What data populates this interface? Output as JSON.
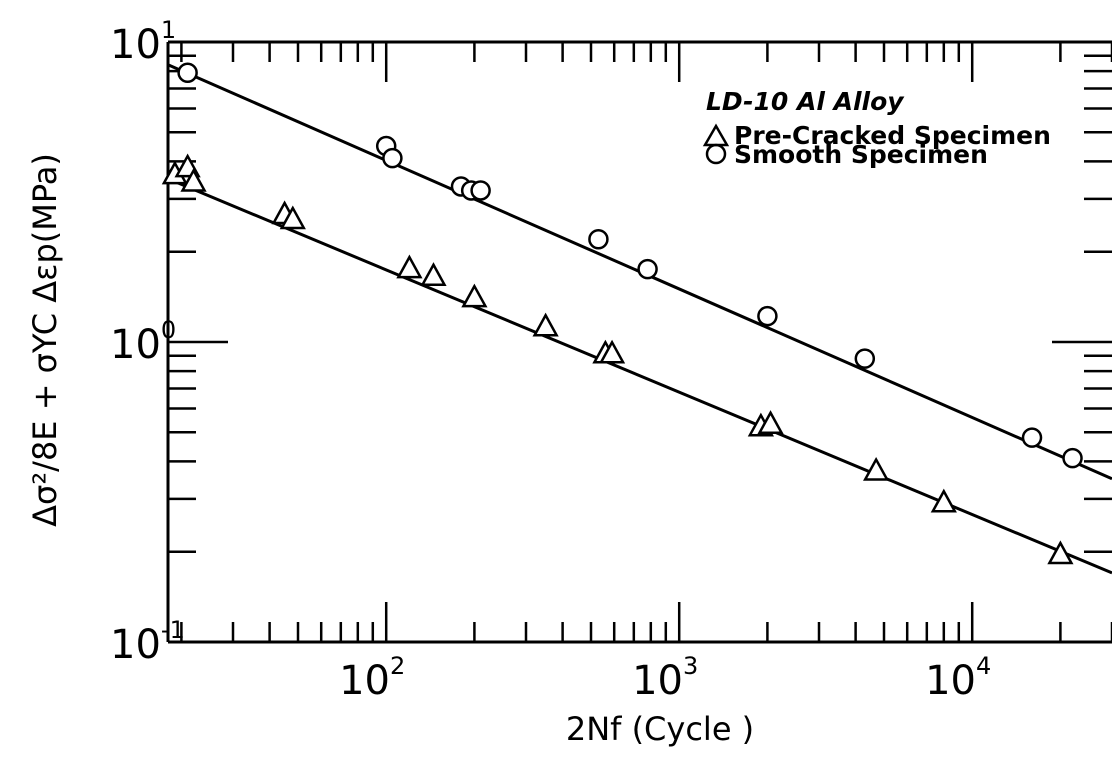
{
  "chart_data": {
    "type": "scatter",
    "x_scale": "log",
    "y_scale": "log",
    "xlim": [
      18,
      30000
    ],
    "ylim": [
      0.1,
      10
    ],
    "xlabel": "2Nf (Cycle )",
    "ylabel": "Δσ²/8E + σYC Δεp(MPa)",
    "x_ticks": [
      {
        "value": 100,
        "base": "10",
        "exp": "2"
      },
      {
        "value": 1000,
        "base": "10",
        "exp": "3"
      },
      {
        "value": 10000,
        "base": "10",
        "exp": "4"
      }
    ],
    "y_ticks": [
      {
        "value": 10,
        "base": "10",
        "exp": "1"
      },
      {
        "value": 1,
        "base": "10",
        "exp": "0"
      },
      {
        "value": 0.1,
        "base": "10",
        "exp": "-1"
      }
    ],
    "legend": {
      "title": "LD-10 Al Alloy",
      "placement": "top-right",
      "entries": [
        {
          "marker": "triangle",
          "label": "Pre-Cracked Specimen"
        },
        {
          "marker": "circle",
          "label": "Smooth Specimen"
        }
      ]
    },
    "series": [
      {
        "name": "Smooth Specimen",
        "marker": "circle",
        "x": [
          21,
          100,
          105,
          180,
          195,
          210,
          530,
          780,
          2000,
          4300,
          16000,
          22000
        ],
        "y": [
          7.9,
          4.5,
          4.1,
          3.3,
          3.2,
          3.2,
          2.2,
          1.75,
          1.22,
          0.88,
          0.48,
          0.41
        ],
        "fit": {
          "x": [
            18,
            30000
          ],
          "y": [
            8.4,
            0.35
          ]
        }
      },
      {
        "name": "Pre-Cracked Specimen",
        "marker": "triangle",
        "x": [
          19,
          21,
          22,
          45,
          48,
          120,
          145,
          200,
          350,
          560,
          590,
          1900,
          2050,
          4700,
          8000,
          20000
        ],
        "y": [
          3.6,
          3.8,
          3.4,
          2.65,
          2.55,
          1.75,
          1.65,
          1.4,
          1.12,
          0.91,
          0.91,
          0.52,
          0.53,
          0.37,
          0.29,
          0.195
        ],
        "fit": {
          "x": [
            18,
            30000
          ],
          "y": [
            3.5,
            0.17
          ]
        }
      }
    ]
  }
}
